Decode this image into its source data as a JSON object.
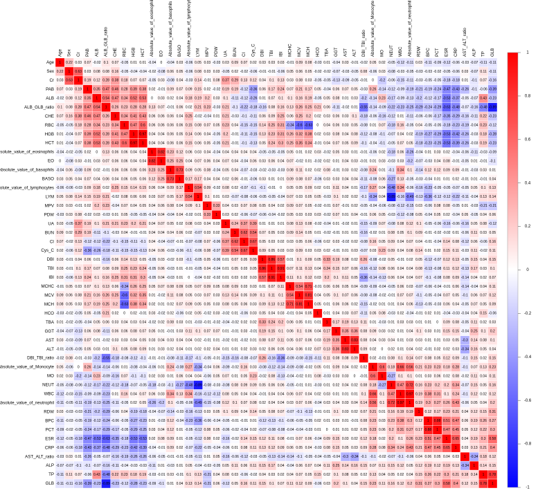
{
  "chart_data": {
    "type": "heatmap",
    "variables": [
      "Age",
      "Sex",
      "Cr",
      "PAB",
      "ALB",
      "ALB_GLB_ratio",
      "CHE",
      "RBC",
      "HGB",
      "HCT",
      "Absolute_value_of_eosinophils",
      "EO",
      "Absolute_value_of_basophils",
      "BASO",
      "Absolute_value_of_lymphocytes",
      "LYM",
      "MPV",
      "PDW",
      "UA",
      "BUN",
      "CI",
      "Cys_C",
      "DBI",
      "TBI",
      "IBI",
      "MCHC",
      "MCV",
      "MCH",
      "HCO",
      "TBA",
      "GGT",
      "AST",
      "ALT",
      "DBI_TBI_ratio",
      "Absolute_value_of_Monocyte",
      "MO",
      "NEUT",
      "WBC",
      "Absolute_value_of_neutrophil",
      "RDW",
      "BPC",
      "PCT",
      "ESR",
      "CRP",
      "AST_ALT_ratio",
      "ALP",
      "TP",
      "GLB"
    ],
    "values": [
      [
        1
      ],
      [
        0.22,
        1
      ],
      [
        0.03,
        0.63,
        1
      ],
      [
        0.07,
        0.03,
        0.19,
        1
      ],
      [
        -0.02,
        0.08,
        0.12,
        0.35,
        1
      ],
      [
        0.1,
        0.08,
        0.28,
        0.47,
        0.54,
        1
      ],
      [
        0.07,
        0.16,
        0.38,
        0.46,
        0.47,
        0.26,
        1
      ],
      [
        -0.05,
        -0.05,
        0.18,
        0.28,
        0.34,
        0.23,
        0.34,
        1
      ],
      [
        0.01,
        -0.04,
        0.07,
        0.39,
        0.52,
        0.28,
        0.41,
        0.47,
        1
      ],
      [
        0.01,
        -0.04,
        0.07,
        0.38,
        0.53,
        0.28,
        0.43,
        0.6,
        0.97,
        1
      ],
      [
        -0.04,
        -0.02,
        -0.05,
        0.02,
        0,
        0.13,
        0.06,
        0.06,
        0.04,
        0.04,
        1
      ],
      [
        0,
        -0.08,
        0.03,
        -0.01,
        0.03,
        0.07,
        0.06,
        0.06,
        0.04,
        0.04,
        0.82,
        1
      ],
      [
        -0.04,
        0.06,
        -0.08,
        0.09,
        0.02,
        -0.01,
        0.06,
        0.06,
        0.06,
        0.06,
        0.23,
        0.25,
        1
      ],
      [
        0.03,
        0.05,
        0.04,
        0.07,
        0.04,
        0.06,
        0.04,
        0.06,
        0.05,
        0.06,
        0.12,
        0.25,
        0.73,
        1
      ],
      [
        -0.06,
        -0.06,
        -0.03,
        0.09,
        0.18,
        0.02,
        0.25,
        0.15,
        0.14,
        0.15,
        0.06,
        0.04,
        0.09,
        0.17,
        1
      ],
      [
        0.05,
        0.08,
        0.14,
        0.15,
        0.19,
        0.21,
        -0.02,
        0.08,
        0.06,
        0.06,
        0.03,
        0.07,
        0.05,
        0.17,
        0.54,
        1
      ],
      [
        0.03,
        0.03,
        -0.01,
        0.02,
        0.2,
        0.23,
        -0.04,
        0.07,
        0.04,
        0.05,
        0.04,
        0.06,
        0.08,
        0.04,
        0.09,
        0.1,
        1
      ],
      [
        -0.03,
        0.03,
        0.08,
        -0.02,
        0.03,
        -0.03,
        0.01,
        0.05,
        -0.05,
        -0.05,
        -0.04,
        0.04,
        -0.04,
        0.04,
        -0.02,
        0.01,
        0.33,
        1
      ],
      [
        0.03,
        -0.05,
        0.37,
        0.19,
        0.1,
        0.21,
        0.21,
        0.23,
        0.2,
        0.21,
        0.04,
        0.07,
        0.05,
        0.02,
        0.08,
        0.03,
        0.04,
        0.03,
        1
      ],
      [
        0.09,
        0.02,
        0.29,
        0.19,
        -0.11,
        -0.1,
        -0.03,
        0.04,
        -0.01,
        -0.01,
        0.04,
        0.04,
        0.04,
        0.06,
        0.02,
        -0.07,
        0.03,
        0.02,
        0.24,
        1
      ],
      [
        0.07,
        -0.02,
        0.13,
        -0.12,
        -0.12,
        -0.22,
        -0.1,
        -0.15,
        -0.11,
        -0.1,
        0.04,
        -0.04,
        -0.07,
        -0.01,
        -0.07,
        -0.08,
        0.07,
        -0.06,
        0.37,
        0.62,
        1
      ],
      [
        0.02,
        -0.06,
        0.12,
        -0.36,
        -0.26,
        -0.18,
        -0.11,
        -0.15,
        -0.15,
        -0.13,
        0.04,
        0.06,
        -0.03,
        -0.06,
        -0.1,
        -0.06,
        0.08,
        -0.07,
        0.39,
        0.54,
        0.67,
        1
      ],
      [
        0.03,
        -0.01,
        0.04,
        0.06,
        0.01,
        -0.16,
        0.06,
        0.14,
        0.13,
        0.05,
        -0.05,
        0.03,
        -0.02,
        0.03,
        -0.1,
        -0.05,
        0.05,
        -0.06,
        0.01,
        0.07,
        0.05,
        0.09,
        1
      ],
      [
        0.03,
        -0.01,
        0.1,
        0.17,
        0.07,
        0.08,
        0.09,
        0.25,
        0.23,
        0.24,
        -0.05,
        0.06,
        -0.03,
        0.01,
        -0.01,
        -0.05,
        0.04,
        -0.04,
        0.01,
        0.05,
        0.03,
        0.05,
        0.86,
        1
      ],
      [
        0.03,
        -0.06,
        0.13,
        0.24,
        0.1,
        0.16,
        0.25,
        0.31,
        0.31,
        0.3,
        -0.05,
        0.04,
        -0.03,
        0.01,
        0,
        -0.04,
        0.02,
        -0.02,
        0.01,
        0.03,
        0.02,
        0.03,
        0.57,
        0.91,
        1
      ],
      [
        -0.01,
        0.05,
        0.03,
        0.07,
        0.1,
        0.13,
        0.06,
        -0.34,
        0.26,
        0.25,
        0.05,
        0.07,
        0.08,
        0.09,
        0.05,
        0.07,
        0.09,
        0.05,
        0.08,
        0.09,
        0.03,
        0.03,
        0.01,
        0.07,
        0.11,
        1
      ],
      [
        0.09,
        0.06,
        0.08,
        0.21,
        0.16,
        0.26,
        0.25,
        -0.6,
        0.32,
        0.35,
        0.01,
        -0.02,
        0.11,
        0.08,
        0.05,
        0.03,
        0.07,
        0.03,
        0.13,
        0.14,
        0.05,
        0.09,
        0.1,
        0.11,
        0.1,
        0.54,
        1
      ],
      [
        0.08,
        0.05,
        0.03,
        0.17,
        0.19,
        0.25,
        0.2,
        -0.63,
        0.38,
        0.34,
        0.02,
        0.01,
        0.02,
        0.07,
        0.09,
        0.05,
        0.05,
        0.03,
        0.08,
        0.05,
        0.06,
        0.03,
        0.09,
        0.13,
        0.12,
        0.71,
        0.81,
        1
      ],
      [
        -0.03,
        -0.02,
        -0.05,
        0.05,
        -0.05,
        0.21,
        0.02,
        0,
        0.02,
        -0.01,
        0.03,
        -0.02,
        0.02,
        -0.06,
        0.02,
        0.05,
        -0.02,
        0.03,
        -0.02,
        0.01,
        -0.06,
        0.03,
        0.05,
        0.04,
        0.03,
        -0.01,
        0.04,
        0.05,
        1
      ],
      [
        0.01,
        -0.02,
        -0.05,
        -0.04,
        0.05,
        0.06,
        0.03,
        0.04,
        0.03,
        0.04,
        -0.02,
        0.02,
        0.08,
        0.03,
        0.01,
        -0.03,
        -0.01,
        -0.02,
        -0.04,
        -0.02,
        0.02,
        0.02,
        0.33,
        0.24,
        0.2,
        0.06,
        0.05,
        0.01,
        0.01,
        1
      ],
      [
        -0.04,
        -0.07,
        -0.13,
        0.06,
        0.08,
        -0.11,
        0.06,
        0.06,
        0.08,
        0.07,
        0.05,
        0.01,
        -0.01,
        0.03,
        0.11,
        0.1,
        0.07,
        0.07,
        0.01,
        -0.01,
        0.03,
        -0.01,
        0.19,
        0.15,
        0.1,
        0.06,
        0.1,
        0.06,
        0.04,
        0.17,
        1
      ],
      [
        0.03,
        -0.03,
        -0.09,
        0.07,
        0.01,
        -0.02,
        0.03,
        0.03,
        0.04,
        0.05,
        0.03,
        0.04,
        0.03,
        0.04,
        0.04,
        0.02,
        -0.01,
        0.01,
        -0.02,
        0.01,
        -0.02,
        0.01,
        0.08,
        0.07,
        0.11,
        0.05,
        0.07,
        0.06,
        0.03,
        0.19,
        0.35,
        1
      ],
      [
        -0.01,
        -0.05,
        -0.05,
        0.05,
        0.03,
        0.01,
        0.1,
        0.05,
        0.08,
        0.09,
        0.01,
        0.03,
        0.02,
        0.04,
        0.01,
        0.02,
        0.02,
        0.04,
        0.01,
        0.01,
        0.02,
        0.03,
        0.02,
        0.06,
        0.05,
        0.04,
        0.06,
        0.02,
        0.07,
        0.13,
        0.36,
        0.83,
        1
      ],
      [
        -0.02,
        0.08,
        -0.01,
        -0.03,
        -0.2,
        -0.55,
        -0.18,
        -0.08,
        -0.12,
        -0.1,
        -0.01,
        -0.01,
        -0.08,
        -0.11,
        -0.17,
        -0.1,
        -0.05,
        -0.01,
        -0.15,
        -0.16,
        -0.08,
        -0.07,
        0.26,
        -0.16,
        -0.36,
        -0.09,
        -0.08,
        -0.15,
        -0.11,
        0.11,
        0.08,
        0.08,
        0.09,
        1
      ],
      [
        0.05,
        -0.06,
        0,
        0.26,
        -0.14,
        -0.14,
        -0.06,
        0.01,
        -0.08,
        -0.04,
        -0.06,
        0.01,
        0.24,
        -0.08,
        0.27,
        -0.34,
        -0.04,
        0.06,
        -0.09,
        -0.02,
        0.16,
        0.03,
        -0.08,
        -0.12,
        -0.14,
        -0.09,
        -0.08,
        -0.02,
        0.05,
        0.01,
        0.09,
        0.04,
        0.02,
        0.02,
        1
      ],
      [
        0.02,
        0.03,
        -0.2,
        -0.14,
        0.23,
        -0.09,
        -0.16,
        0.07,
        -0.1,
        -0.1,
        0.02,
        0.03,
        0.01,
        0.06,
        0.04,
        0.04,
        -0.06,
        0.05,
        0.07,
        0.01,
        0.05,
        0.23,
        -0.02,
        0.08,
        -0.13,
        -0.04,
        -0.02,
        0.01,
        0.08,
        -0.03,
        0.03,
        0.03,
        0,
        -0.01,
        0.6,
        1
      ],
      [
        -0.05,
        -0.08,
        -0.06,
        -0.12,
        -0.17,
        -0.22,
        -0.12,
        -0.18,
        -0.07,
        -0.05,
        -0.18,
        -0.03,
        -0.1,
        -0.27,
        -0.48,
        -0.89,
        -0.08,
        -0.03,
        -0.08,
        0.08,
        0.09,
        0.09,
        0.05,
        0.06,
        0.06,
        -0.05,
        -0.01,
        0.01,
        -0.03,
        0.01,
        0.02,
        0.04,
        0.02,
        0.08,
        0.18,
        -0.27,
        1
      ],
      [
        -0.12,
        -0.03,
        -0.15,
        -0.09,
        -0.09,
        -0.23,
        0.01,
        0.16,
        0.04,
        0.07,
        0.06,
        0.03,
        0.34,
        0.13,
        0.34,
        -0.16,
        -0.12,
        -0.12,
        0.08,
        0.05,
        0.04,
        0.04,
        -0.01,
        0.04,
        0.04,
        0.06,
        0.07,
        0.04,
        0.02,
        0.03,
        0.01,
        0.01,
        0.01,
        0.1,
        0.66,
        0.1,
        0.47,
        1
      ],
      [
        -0.11,
        -0.05,
        -0.11,
        -0.19,
        -0.13,
        -0.25,
        -0.11,
        -0.05,
        0.02,
        0.05,
        -0.26,
        -0.2,
        0.1,
        -0.05,
        -0.06,
        -0.49,
        -0.15,
        -0.08,
        0.12,
        0.1,
        0.07,
        0.08,
        0.02,
        0.04,
        0.04,
        0.03,
        0.07,
        0.06,
        -0.04,
        0.03,
        0.04,
        0.03,
        0.04,
        0.14,
        0.56,
        0.1,
        0.72,
        0.97,
        1
      ],
      [
        0.03,
        -0.03,
        -0.03,
        -0.21,
        -0.2,
        -0.29,
        -0.06,
        0.04,
        -0.19,
        -0.18,
        -0.04,
        -0.07,
        -0.14,
        -0.03,
        -0.16,
        -0.13,
        0.03,
        0.05,
        0.1,
        0.09,
        0.04,
        0.14,
        0.05,
        0.08,
        0.07,
        -0.07,
        -0.1,
        -0.13,
        -0.01,
        0.01,
        0.1,
        0.03,
        0.02,
        0.07,
        0.21,
        0.01,
        0.16,
        0.19,
        0.19,
        1
      ],
      [
        -0.11,
        -0.03,
        -0.05,
        -0.19,
        -0.12,
        -0.24,
        -0.06,
        -0.05,
        -0.27,
        -0.23,
        0.01,
        -0.03,
        0.12,
        -0.04,
        -0.23,
        -0.36,
        -0.06,
        -0.04,
        -0.05,
        -0.01,
        -0.01,
        0.01,
        -0.12,
        -0.13,
        -0.1,
        -0.06,
        -0.05,
        -0.05,
        0.02,
        0.01,
        0.03,
        0.01,
        -0.01,
        0.08,
        0.23,
        0.03,
        0.23,
        0.38,
        0.3,
        0.12,
        1
      ],
      [
        -0.09,
        -0.02,
        -0.05,
        -0.24,
        -0.17,
        -0.29,
        -0.17,
        -0.05,
        -0.29,
        -0.25,
        0.03,
        0.04,
        0.12,
        0.01,
        -0.05,
        -0.12,
        0.08,
        0.05,
        -0.06,
        -0.02,
        -0.04,
        0.02,
        -0.07,
        -0.08,
        -0.08,
        -0.04,
        -0.04,
        -0.03,
        0.01,
        0,
        0.01,
        0.01,
        0.02,
        0.05,
        0.23,
        0.06,
        0.2,
        0.31,
        0.27,
        0.17,
        0.88,
        1
      ],
      [
        -0.12,
        -0.05,
        -0.18,
        -0.47,
        -0.53,
        -0.63,
        -0.35,
        -0.18,
        -0.53,
        -0.53,
        0.02,
        0.08,
        0.09,
        0.01,
        -0.05,
        -0.12,
        0.08,
        0.02,
        -0.16,
        -0.02,
        0.14,
        0.15,
        0.12,
        0.11,
        0.08,
        -0.01,
        0.07,
        0.06,
        -0.04,
        0.09,
        0.15,
        0.03,
        0.02,
        0.12,
        0.18,
        0.02,
        0.2,
        0.1,
        0.26,
        0.23,
        0.51,
        0.47,
        1
      ],
      [
        -0.06,
        -0.06,
        -0.18,
        -0.43,
        -0.37,
        -0.48,
        -0.29,
        -0.23,
        -0.42,
        -0.39,
        -0.04,
        -0.01,
        0.09,
        0.02,
        -0.07,
        -0.22,
        -0.05,
        -0.04,
        -0.06,
        0.01,
        0.08,
        0.11,
        0.13,
        0.12,
        0.09,
        0.06,
        0.05,
        0.04,
        -0.03,
        0.08,
        0.15,
        0.05,
        0.03,
        0.09,
        0.28,
        0.08,
        0.34,
        0.24,
        0.43,
        0.21,
        0.47,
        0.45,
        0.65,
        1
      ],
      [
        -0.03,
        0.03,
        0.01,
        -0.26,
        -0.05,
        -0.07,
        -0.16,
        -0.19,
        -0.26,
        -0.26,
        -0.06,
        -0.05,
        -0.01,
        -0.01,
        -0.05,
        -0.11,
        0.01,
        0.05,
        -0.16,
        -0.06,
        -0.12,
        -0.03,
        -0.05,
        -0.13,
        -0.14,
        -0.14,
        -0.1,
        -0.05,
        -0.04,
        -0.05,
        -0.04,
        -0.3,
        -0.34,
        -0.1,
        -0.1,
        -0.02,
        -0.07,
        -0.1,
        -0.06,
        0.04,
        0.06,
        0.05,
        0.04,
        0.03,
        1
      ],
      [
        -0.07,
        -0.07,
        -0.1,
        -0.1,
        -0.07,
        -0.16,
        -0.11,
        -0.04,
        -0.03,
        -0.03,
        -0.11,
        0.01,
        -0.03,
        0.01,
        0.05,
        -0.04,
        -0.03,
        -0.05,
        0.05,
        0.11,
        0.06,
        0.11,
        0.15,
        0.17,
        0.04,
        -0.04,
        0.06,
        0.07,
        0.04,
        0.11,
        0.25,
        0.14,
        0.16,
        0.15,
        0.07,
        0.11,
        0.15,
        0.12,
        0.05,
        0.12,
        0.19,
        0.12,
        0.19,
        0.13,
        -0.34,
        1
      ],
      [
        -0.11,
        0.11,
        0.07,
        -0.06,
        0.43,
        -0.48,
        0.22,
        0.23,
        0.18,
        0.19,
        -0.03,
        -0.01,
        0.03,
        -0.01,
        0.1,
        0.13,
        -0.21,
        0.04,
        0.08,
        0.03,
        -0.06,
        -0.02,
        0.04,
        0.03,
        0.02,
        0.04,
        0.07,
        0.05,
        0.15,
        0.02,
        0.1,
        0.08,
        0.05,
        0.02,
        0.13,
        0.04,
        0.05,
        0.02,
        0.04,
        0.15,
        0.26,
        0.22,
        0.3,
        0.21,
        0.18,
        0.14,
        1
      ],
      [
        -0.11,
        -0.11,
        -0.16,
        -0.39,
        -0.23,
        -0.89,
        -0.23,
        -0.12,
        -0.28,
        -0.23,
        -0.09,
        -0.1,
        0.01,
        0.04,
        0.13,
        0.14,
        -0.21,
        0.06,
        -0.12,
        0.05,
        0.16,
        0.11,
        0.15,
        0.1,
        0.07,
        0.11,
        0.12,
        0.09,
        -0.06,
        0.03,
        0.2,
        0.1,
        0.04,
        0.15,
        0.23,
        0.11,
        0.16,
        0.12,
        0.2,
        0.31,
        0.27,
        0.3,
        0.58,
        0.4,
        0.12,
        0.15,
        0.78,
        1
      ]
    ],
    "clim": [
      -1,
      1
    ],
    "cticks": [
      -1,
      -0.8,
      -0.6,
      -0.4,
      -0.2,
      0,
      0.2,
      0.4,
      0.6,
      0.8,
      1
    ],
    "colors": [
      "#0000ff",
      "#ffffff",
      "#ff0000"
    ]
  }
}
